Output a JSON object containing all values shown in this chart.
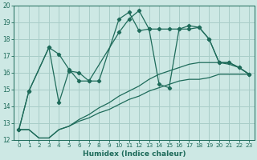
{
  "xlabel": "Humidex (Indice chaleur)",
  "xlim": [
    -0.5,
    23.5
  ],
  "ylim": [
    12,
    20
  ],
  "yticks": [
    12,
    13,
    14,
    15,
    16,
    17,
    18,
    19,
    20
  ],
  "xticks": [
    0,
    1,
    2,
    3,
    4,
    5,
    6,
    7,
    8,
    9,
    10,
    11,
    12,
    13,
    14,
    15,
    16,
    17,
    18,
    19,
    20,
    21,
    22,
    23
  ],
  "bg_color": "#cde8e4",
  "grid_color": "#a8cdc8",
  "line_color": "#1e6b5a",
  "line1_x": [
    0,
    1,
    3,
    4,
    5,
    6,
    7,
    10,
    11,
    12,
    13,
    14,
    15,
    16,
    17,
    18,
    19,
    20,
    21,
    22,
    23
  ],
  "line1_y": [
    12.6,
    14.9,
    17.5,
    17.1,
    16.2,
    15.5,
    15.5,
    18.4,
    19.2,
    19.7,
    18.6,
    18.6,
    18.6,
    18.6,
    18.8,
    18.7,
    18.0,
    16.6,
    16.6,
    16.3,
    15.9
  ],
  "line2_x": [
    0,
    1,
    3,
    4,
    5,
    6,
    7,
    8,
    10,
    11,
    12,
    13,
    14,
    15,
    16,
    17,
    18,
    19,
    20,
    21,
    22,
    23
  ],
  "line2_y": [
    12.6,
    14.9,
    17.5,
    14.2,
    16.1,
    16.0,
    15.5,
    15.5,
    19.2,
    19.6,
    18.5,
    18.6,
    15.3,
    15.1,
    18.6,
    18.6,
    18.7,
    18.0,
    16.6,
    16.6,
    16.3,
    15.9
  ],
  "line3_x": [
    0,
    1,
    2,
    3,
    4,
    5,
    6,
    7,
    8,
    9,
    10,
    11,
    12,
    13,
    14,
    15,
    16,
    17,
    18,
    19,
    20,
    21,
    22,
    23
  ],
  "line3_y": [
    12.6,
    12.6,
    12.1,
    12.1,
    12.6,
    12.8,
    13.1,
    13.3,
    13.6,
    13.8,
    14.1,
    14.4,
    14.6,
    14.9,
    15.1,
    15.3,
    15.5,
    15.6,
    15.6,
    15.7,
    15.9,
    15.9,
    15.9,
    15.9
  ],
  "line4_x": [
    0,
    1,
    2,
    3,
    4,
    5,
    6,
    7,
    8,
    9,
    10,
    11,
    12,
    13,
    14,
    15,
    16,
    17,
    18,
    19,
    20,
    21,
    22,
    23
  ],
  "line4_y": [
    12.6,
    12.6,
    12.1,
    12.1,
    12.6,
    12.8,
    13.2,
    13.5,
    13.9,
    14.2,
    14.6,
    14.9,
    15.2,
    15.6,
    15.9,
    16.1,
    16.3,
    16.5,
    16.6,
    16.6,
    16.6,
    16.5,
    16.3,
    15.9
  ]
}
